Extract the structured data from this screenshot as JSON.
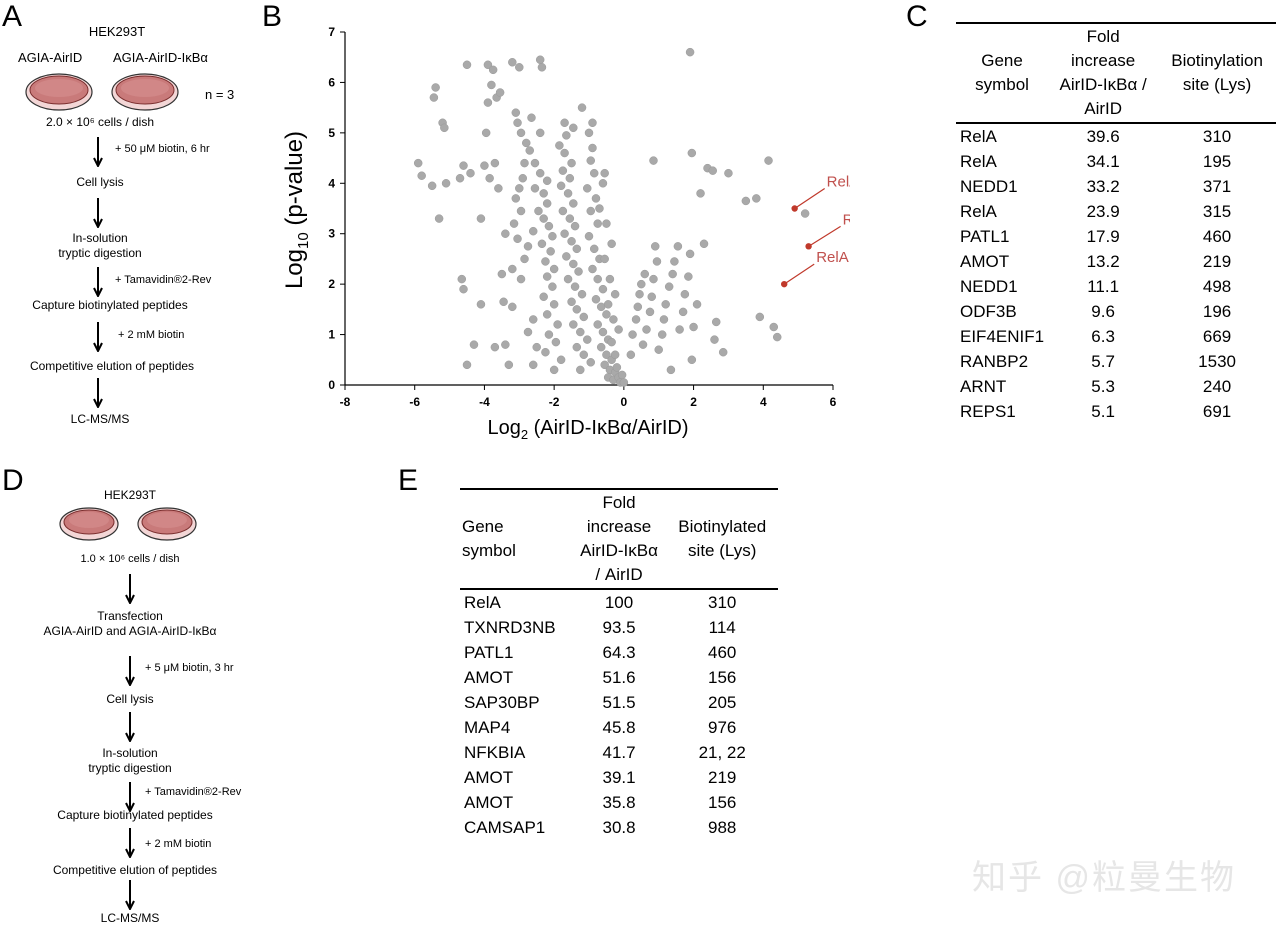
{
  "panels": {
    "A": "A",
    "B": "B",
    "C": "C",
    "D": "D",
    "E": "E"
  },
  "panelA": {
    "cell_line": "HEK293T",
    "dish_left": "AGIA-AirID",
    "dish_right": "AGIA-AirID-IκBα",
    "n": "n = 3",
    "cells": "2.0 × 10⁶ cells / dish",
    "step1_note": "+ 50 μM biotin, 6 hr",
    "step1": "Cell lysis",
    "step2a": "In-solution",
    "step2b": "tryptic digestion",
    "step2_note": "+ Tamavidin®2-Rev",
    "step3": "Capture biotinylated peptides",
    "step3_note": "+ 2 mM biotin",
    "step4": "Competitive elution of peptides",
    "step5": "LC-MS/MS"
  },
  "panelD": {
    "cell_line": "HEK293T",
    "cells": "1.0 × 10⁶ cells / dish",
    "step1a": "Transfection",
    "step1b": "AGIA-AirID and AGIA-AirID-IκBα",
    "step2_note": "+ 5 μM biotin, 3 hr",
    "step2": "Cell lysis",
    "step3a": "In-solution",
    "step3b": "tryptic digestion",
    "step3_note": "+ Tamavidin®2-Rev",
    "step4": "Capture biotinylated peptides",
    "step4_note": "+ 2 mM biotin",
    "step5": "Competitive elution of peptides",
    "step6": "LC-MS/MS"
  },
  "tableC": {
    "headers": [
      "Gene\nsymbol",
      "Fold\nincrease\nAirID-IκBα /\nAirID",
      "Biotinylation\nsite (Lys)"
    ],
    "rows": [
      [
        "RelA",
        "39.6",
        "310"
      ],
      [
        "RelA",
        "34.1",
        "195"
      ],
      [
        "NEDD1",
        "33.2",
        "371"
      ],
      [
        "RelA",
        "23.9",
        "315"
      ],
      [
        "PATL1",
        "17.9",
        "460"
      ],
      [
        "AMOT",
        "13.2",
        "219"
      ],
      [
        "NEDD1",
        "11.1",
        "498"
      ],
      [
        "ODF3B",
        "9.6",
        "196"
      ],
      [
        "EIF4ENIF1",
        "6.3",
        "669"
      ],
      [
        "RANBP2",
        "5.7",
        "1530"
      ],
      [
        "ARNT",
        "5.3",
        "240"
      ],
      [
        "REPS1",
        "5.1",
        "691"
      ]
    ]
  },
  "tableE": {
    "headers": [
      "Gene\nsymbol",
      "Fold\nincrease\nAirID-IκBα\n/ AirID",
      "Biotinylated\nsite (Lys)"
    ],
    "rows": [
      [
        "RelA",
        "100",
        "310"
      ],
      [
        "TXNRD3NB",
        "93.5",
        "114"
      ],
      [
        "PATL1",
        "64.3",
        "460"
      ],
      [
        "AMOT",
        "51.6",
        "156"
      ],
      [
        "SAP30BP",
        "51.5",
        "205"
      ],
      [
        "MAP4",
        "45.8",
        "976"
      ],
      [
        "NFKBIA",
        "41.7",
        "21, 22"
      ],
      [
        "AMOT",
        "39.1",
        "219"
      ],
      [
        "AMOT",
        "35.8",
        "156"
      ],
      [
        "CAMSAP1",
        "30.8",
        "988"
      ]
    ]
  },
  "watermark": "知乎 @粒曼生物",
  "chart_data": {
    "type": "scatter",
    "xlabel_main": "Log",
    "xlabel_sub": "2",
    "xlabel_rest": " (AirID-IκBα/AirID)",
    "ylabel_main": "Log",
    "ylabel_sub": "10",
    "ylabel_rest": " (p-value)",
    "xlim": [
      -8,
      6
    ],
    "ylim": [
      0,
      7
    ],
    "xticks": [
      -8,
      -6,
      -4,
      -2,
      0,
      2,
      4,
      6
    ],
    "yticks": [
      0,
      1,
      2,
      3,
      4,
      5,
      6,
      7
    ],
    "colors": {
      "points": "#a9a9a9",
      "highlight": "#c0392b",
      "label": "#c0504d"
    },
    "highlighted": [
      {
        "label": "RelA",
        "x": 4.9,
        "y": 3.5
      },
      {
        "label": "RelA",
        "x": 5.3,
        "y": 2.75
      },
      {
        "label": "RelA",
        "x": 4.6,
        "y": 2.0
      }
    ],
    "points": [
      [
        -5.9,
        4.4
      ],
      [
        -5.8,
        4.15
      ],
      [
        -5.4,
        5.9
      ],
      [
        -5.45,
        5.7
      ],
      [
        -5.1,
        4.0
      ],
      [
        -5.3,
        3.3
      ],
      [
        -5.5,
        3.95
      ],
      [
        -5.2,
        5.2
      ],
      [
        -5.15,
        5.1
      ],
      [
        -4.5,
        6.35
      ],
      [
        -4.6,
        4.35
      ],
      [
        -4.4,
        4.2
      ],
      [
        -4.7,
        4.1
      ],
      [
        -4.65,
        2.1
      ],
      [
        -4.6,
        1.9
      ],
      [
        -4.1,
        1.6
      ],
      [
        -4.5,
        0.4
      ],
      [
        -4.3,
        0.8
      ],
      [
        -3.9,
        6.35
      ],
      [
        -3.8,
        5.95
      ],
      [
        -3.65,
        5.7
      ],
      [
        -3.7,
        4.4
      ],
      [
        -3.6,
        3.9
      ],
      [
        -3.4,
        3.0
      ],
      [
        -3.5,
        2.2
      ],
      [
        -3.45,
        1.65
      ],
      [
        -3.4,
        0.8
      ],
      [
        -3.3,
        0.4
      ],
      [
        -3.7,
        0.75
      ],
      [
        -3.9,
        5.6
      ],
      [
        -3.95,
        5.0
      ],
      [
        -4.0,
        4.35
      ],
      [
        -3.85,
        4.1
      ],
      [
        -4.1,
        3.3
      ],
      [
        -3.2,
        6.4
      ],
      [
        -3.0,
        6.3
      ],
      [
        -3.1,
        5.4
      ],
      [
        -3.05,
        5.2
      ],
      [
        -2.95,
        5.0
      ],
      [
        -2.8,
        4.8
      ],
      [
        -2.7,
        4.65
      ],
      [
        -2.85,
        4.4
      ],
      [
        -2.9,
        4.1
      ],
      [
        -3.0,
        3.9
      ],
      [
        -3.1,
        3.7
      ],
      [
        -2.95,
        3.45
      ],
      [
        -3.15,
        3.2
      ],
      [
        -2.6,
        3.05
      ],
      [
        -3.05,
        2.9
      ],
      [
        -2.75,
        2.75
      ],
      [
        -2.85,
        2.5
      ],
      [
        -3.2,
        2.3
      ],
      [
        -2.95,
        2.1
      ],
      [
        -3.2,
        1.55
      ],
      [
        -2.6,
        1.3
      ],
      [
        -2.75,
        1.05
      ],
      [
        -2.5,
        0.75
      ],
      [
        -2.6,
        0.4
      ],
      [
        -2.4,
        6.45
      ],
      [
        -2.35,
        6.3
      ],
      [
        -2.4,
        5.0
      ],
      [
        -2.55,
        4.4
      ],
      [
        -2.4,
        4.2
      ],
      [
        -2.2,
        4.05
      ],
      [
        -2.55,
        3.9
      ],
      [
        -2.3,
        3.8
      ],
      [
        -2.2,
        3.6
      ],
      [
        -2.45,
        3.45
      ],
      [
        -2.3,
        3.3
      ],
      [
        -2.15,
        3.15
      ],
      [
        -2.05,
        2.95
      ],
      [
        -2.35,
        2.8
      ],
      [
        -2.1,
        2.65
      ],
      [
        -2.25,
        2.45
      ],
      [
        -2.0,
        2.3
      ],
      [
        -2.2,
        2.15
      ],
      [
        -2.05,
        1.95
      ],
      [
        -2.3,
        1.75
      ],
      [
        -2.0,
        1.6
      ],
      [
        -2.2,
        1.4
      ],
      [
        -1.9,
        1.2
      ],
      [
        -2.15,
        1.0
      ],
      [
        -1.95,
        0.85
      ],
      [
        -2.25,
        0.65
      ],
      [
        -1.8,
        0.5
      ],
      [
        -2.0,
        0.3
      ],
      [
        -1.7,
        5.2
      ],
      [
        -1.65,
        4.95
      ],
      [
        -1.7,
        4.6
      ],
      [
        -1.5,
        4.4
      ],
      [
        -1.75,
        4.25
      ],
      [
        -1.55,
        4.1
      ],
      [
        -1.8,
        3.95
      ],
      [
        -1.6,
        3.8
      ],
      [
        -1.45,
        3.6
      ],
      [
        -1.75,
        3.45
      ],
      [
        -1.55,
        3.3
      ],
      [
        -1.4,
        3.15
      ],
      [
        -1.7,
        3.0
      ],
      [
        -1.5,
        2.85
      ],
      [
        -1.35,
        2.7
      ],
      [
        -1.65,
        2.55
      ],
      [
        -1.45,
        2.4
      ],
      [
        -1.3,
        2.25
      ],
      [
        -1.6,
        2.1
      ],
      [
        -1.4,
        1.95
      ],
      [
        -1.2,
        1.8
      ],
      [
        -1.5,
        1.65
      ],
      [
        -1.35,
        1.5
      ],
      [
        -1.15,
        1.35
      ],
      [
        -1.45,
        1.2
      ],
      [
        -1.25,
        1.05
      ],
      [
        -1.05,
        0.9
      ],
      [
        -1.35,
        0.75
      ],
      [
        -1.15,
        0.6
      ],
      [
        -0.95,
        0.45
      ],
      [
        -1.25,
        0.3
      ],
      [
        -1.0,
        5.0
      ],
      [
        -0.9,
        4.7
      ],
      [
        -0.95,
        4.45
      ],
      [
        -0.85,
        4.2
      ],
      [
        -1.05,
        3.9
      ],
      [
        -0.8,
        3.7
      ],
      [
        -0.95,
        3.45
      ],
      [
        -0.75,
        3.2
      ],
      [
        -1.0,
        2.95
      ],
      [
        -0.85,
        2.7
      ],
      [
        -0.7,
        2.5
      ],
      [
        -0.9,
        2.3
      ],
      [
        -0.75,
        2.1
      ],
      [
        -0.6,
        1.9
      ],
      [
        -0.8,
        1.7
      ],
      [
        -0.65,
        1.55
      ],
      [
        -0.5,
        1.4
      ],
      [
        -0.75,
        1.2
      ],
      [
        -0.6,
        1.05
      ],
      [
        -0.45,
        0.9
      ],
      [
        -0.65,
        0.75
      ],
      [
        -0.5,
        0.6
      ],
      [
        -0.35,
        0.5
      ],
      [
        -0.55,
        0.4
      ],
      [
        -0.4,
        0.3
      ],
      [
        -0.25,
        0.25
      ],
      [
        -0.45,
        0.15
      ],
      [
        -0.3,
        0.1
      ],
      [
        -0.15,
        0.15
      ],
      [
        -0.2,
        0.35
      ],
      [
        -0.1,
        0.05
      ],
      [
        0.0,
        0.05
      ],
      [
        -0.05,
        0.2
      ],
      [
        -0.25,
        0.6
      ],
      [
        -0.35,
        0.85
      ],
      [
        -0.15,
        1.1
      ],
      [
        -0.3,
        1.3
      ],
      [
        -0.45,
        1.6
      ],
      [
        -0.25,
        1.8
      ],
      [
        -0.4,
        2.1
      ],
      [
        -0.55,
        2.5
      ],
      [
        -0.35,
        2.8
      ],
      [
        -0.5,
        3.2
      ],
      [
        -0.7,
        3.5
      ],
      [
        -0.6,
        4.0
      ],
      [
        -0.55,
        4.2
      ],
      [
        -0.9,
        5.2
      ],
      [
        -1.2,
        5.5
      ],
      [
        -1.45,
        5.1
      ],
      [
        -1.85,
        4.75
      ],
      [
        -2.65,
        5.3
      ],
      [
        -3.55,
        5.8
      ],
      [
        -3.75,
        6.25
      ],
      [
        0.2,
        0.6
      ],
      [
        0.25,
        1.0
      ],
      [
        0.35,
        1.3
      ],
      [
        0.4,
        1.55
      ],
      [
        0.45,
        1.8
      ],
      [
        0.5,
        2.0
      ],
      [
        0.6,
        2.2
      ],
      [
        0.55,
        0.8
      ],
      [
        0.65,
        1.1
      ],
      [
        0.75,
        1.45
      ],
      [
        0.8,
        1.75
      ],
      [
        0.85,
        2.1
      ],
      [
        0.95,
        2.45
      ],
      [
        0.9,
        2.75
      ],
      [
        1.0,
        0.7
      ],
      [
        1.1,
        1.0
      ],
      [
        1.15,
        1.3
      ],
      [
        1.2,
        1.6
      ],
      [
        1.3,
        1.95
      ],
      [
        1.4,
        2.2
      ],
      [
        1.45,
        2.45
      ],
      [
        1.55,
        2.75
      ],
      [
        1.6,
        1.1
      ],
      [
        1.7,
        1.45
      ],
      [
        1.75,
        1.8
      ],
      [
        1.85,
        2.15
      ],
      [
        1.9,
        2.6
      ],
      [
        1.95,
        0.5
      ],
      [
        2.0,
        1.15
      ],
      [
        2.1,
        1.6
      ],
      [
        2.3,
        2.8
      ],
      [
        2.4,
        4.3
      ],
      [
        2.55,
        4.25
      ],
      [
        2.2,
        3.8
      ],
      [
        1.95,
        4.6
      ],
      [
        1.9,
        6.6
      ],
      [
        0.85,
        4.45
      ],
      [
        2.6,
        0.9
      ],
      [
        2.85,
        0.65
      ],
      [
        3.0,
        4.2
      ],
      [
        3.5,
        3.65
      ],
      [
        3.8,
        3.7
      ],
      [
        3.9,
        1.35
      ],
      [
        4.15,
        4.45
      ],
      [
        4.3,
        1.15
      ],
      [
        4.4,
        0.95
      ],
      [
        5.2,
        3.4
      ],
      [
        2.65,
        1.25
      ],
      [
        1.35,
        0.3
      ]
    ]
  }
}
